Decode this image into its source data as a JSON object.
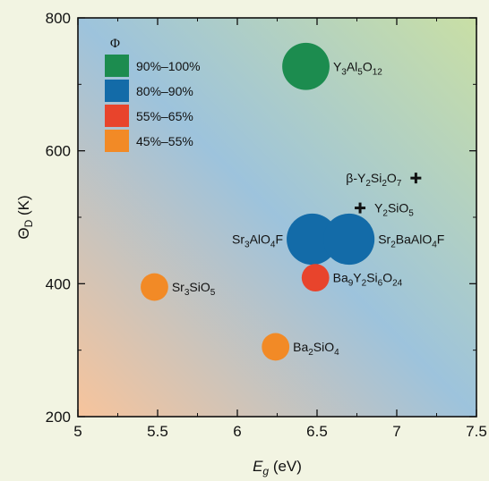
{
  "colors": {
    "green": "#1c8c4f",
    "blue": "#136ba8",
    "red": "#e8442c",
    "orange": "#f28a26",
    "page_bg": "#f2f4e2",
    "bg_top_left": "#9dc3dc",
    "bg_bottom_left": "#f7c49c",
    "bg_top_right": "#c9dfa5",
    "bg_bottom_right": "#9cc3e0"
  },
  "chart_data": {
    "type": "scatter",
    "title": "",
    "xlabel": "E_g (eV)",
    "ylabel": "Θ_D (K)",
    "xlim": [
      5,
      7.5
    ],
    "ylim": [
      200,
      800
    ],
    "grid": false,
    "x_ticks": [
      5,
      5.5,
      6,
      6.5,
      7,
      7.5
    ],
    "y_ticks": [
      200,
      400,
      600,
      800
    ],
    "x_tick_labels": [
      "5",
      "5.5",
      "6",
      "6.5",
      "7",
      "7.5"
    ],
    "y_tick_labels": [
      "200",
      "400",
      "600",
      "800"
    ],
    "legend": {
      "title": "Φ",
      "placement": "top-left",
      "entries": [
        {
          "label": "90%–100%",
          "color": "green"
        },
        {
          "label": "80%–90%",
          "color": "blue"
        },
        {
          "label": "55%–65%",
          "color": "red"
        },
        {
          "label": "45%–55%",
          "color": "orange"
        }
      ]
    },
    "points": [
      {
        "label": "Y3Al5O12",
        "x": 6.43,
        "y": 727,
        "category": "90%–100%",
        "color": "green",
        "marker": "circle",
        "size": 1.2,
        "label_side": "right"
      },
      {
        "label": "Sr3AlO4F",
        "x": 6.47,
        "y": 467,
        "category": "80%–90%",
        "color": "blue",
        "marker": "circle",
        "size": 1.3,
        "label_side": "left"
      },
      {
        "label": "Sr2BaAlO4F",
        "x": 6.7,
        "y": 467,
        "category": "80%–90%",
        "color": "blue",
        "marker": "circle",
        "size": 1.3,
        "label_side": "right"
      },
      {
        "label": "Ba9Y2Si6O24",
        "x": 6.49,
        "y": 409,
        "category": "55%–65%",
        "color": "red",
        "marker": "circle",
        "size": 0.7,
        "label_side": "right"
      },
      {
        "label": "Sr3SiO5",
        "x": 5.48,
        "y": 395,
        "category": "45%–55%",
        "color": "orange",
        "marker": "circle",
        "size": 0.7,
        "label_side": "right"
      },
      {
        "label": "Ba2SiO4",
        "x": 6.24,
        "y": 305,
        "category": "45%–55%",
        "color": "orange",
        "marker": "circle",
        "size": 0.7,
        "label_side": "right"
      },
      {
        "label": "β-Y2Si2O7",
        "x": 7.12,
        "y": 559,
        "category": "",
        "color": "black",
        "marker": "plus",
        "size": 0.3,
        "label_side": "left"
      },
      {
        "label": "Y2SiO5",
        "x": 6.77,
        "y": 514,
        "category": "",
        "color": "black",
        "marker": "plus",
        "size": 0.3,
        "label_side": "right"
      }
    ]
  }
}
